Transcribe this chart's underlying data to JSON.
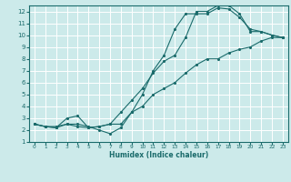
{
  "title": "",
  "xlabel": "Humidex (Indice chaleur)",
  "ylabel": "",
  "background_color": "#cceaea",
  "grid_color": "#ffffff",
  "line_color": "#1a6b6b",
  "xlim": [
    -0.5,
    23.5
  ],
  "ylim": [
    1,
    12.5
  ],
  "xticks": [
    0,
    1,
    2,
    3,
    4,
    5,
    6,
    7,
    8,
    9,
    10,
    11,
    12,
    13,
    14,
    15,
    16,
    17,
    18,
    19,
    20,
    21,
    22,
    23
  ],
  "yticks": [
    1,
    2,
    3,
    4,
    5,
    6,
    7,
    8,
    9,
    10,
    11,
    12
  ],
  "lines": [
    {
      "x": [
        0,
        1,
        2,
        3,
        4,
        5,
        6,
        7,
        8,
        9,
        10,
        11,
        12,
        13,
        14,
        15,
        16,
        17,
        18,
        19,
        20,
        21,
        22,
        23
      ],
      "y": [
        2.5,
        2.3,
        2.3,
        2.5,
        2.5,
        2.3,
        2.0,
        1.7,
        2.2,
        3.5,
        5.0,
        7.0,
        8.3,
        10.5,
        11.8,
        11.8,
        11.8,
        12.3,
        12.2,
        11.5,
        10.5,
        10.3,
        10.0,
        9.8
      ]
    },
    {
      "x": [
        0,
        1,
        2,
        3,
        4,
        5,
        6,
        7,
        8,
        9,
        10,
        11,
        12,
        13,
        14,
        15,
        16,
        17,
        18,
        19,
        20,
        21,
        22,
        23
      ],
      "y": [
        2.5,
        2.3,
        2.2,
        3.0,
        3.2,
        2.2,
        2.3,
        2.5,
        3.5,
        4.5,
        5.5,
        6.8,
        7.8,
        8.3,
        9.8,
        12.0,
        12.0,
        12.5,
        12.5,
        11.8,
        10.3,
        10.3,
        10.0,
        9.8
      ]
    },
    {
      "x": [
        0,
        1,
        2,
        3,
        4,
        5,
        6,
        7,
        8,
        9,
        10,
        11,
        12,
        13,
        14,
        15,
        16,
        17,
        18,
        19,
        20,
        21,
        22,
        23
      ],
      "y": [
        2.5,
        2.3,
        2.2,
        2.5,
        2.3,
        2.2,
        2.3,
        2.5,
        2.5,
        3.5,
        4.0,
        5.0,
        5.5,
        6.0,
        6.8,
        7.5,
        8.0,
        8.0,
        8.5,
        8.8,
        9.0,
        9.5,
        9.8,
        9.8
      ]
    }
  ]
}
